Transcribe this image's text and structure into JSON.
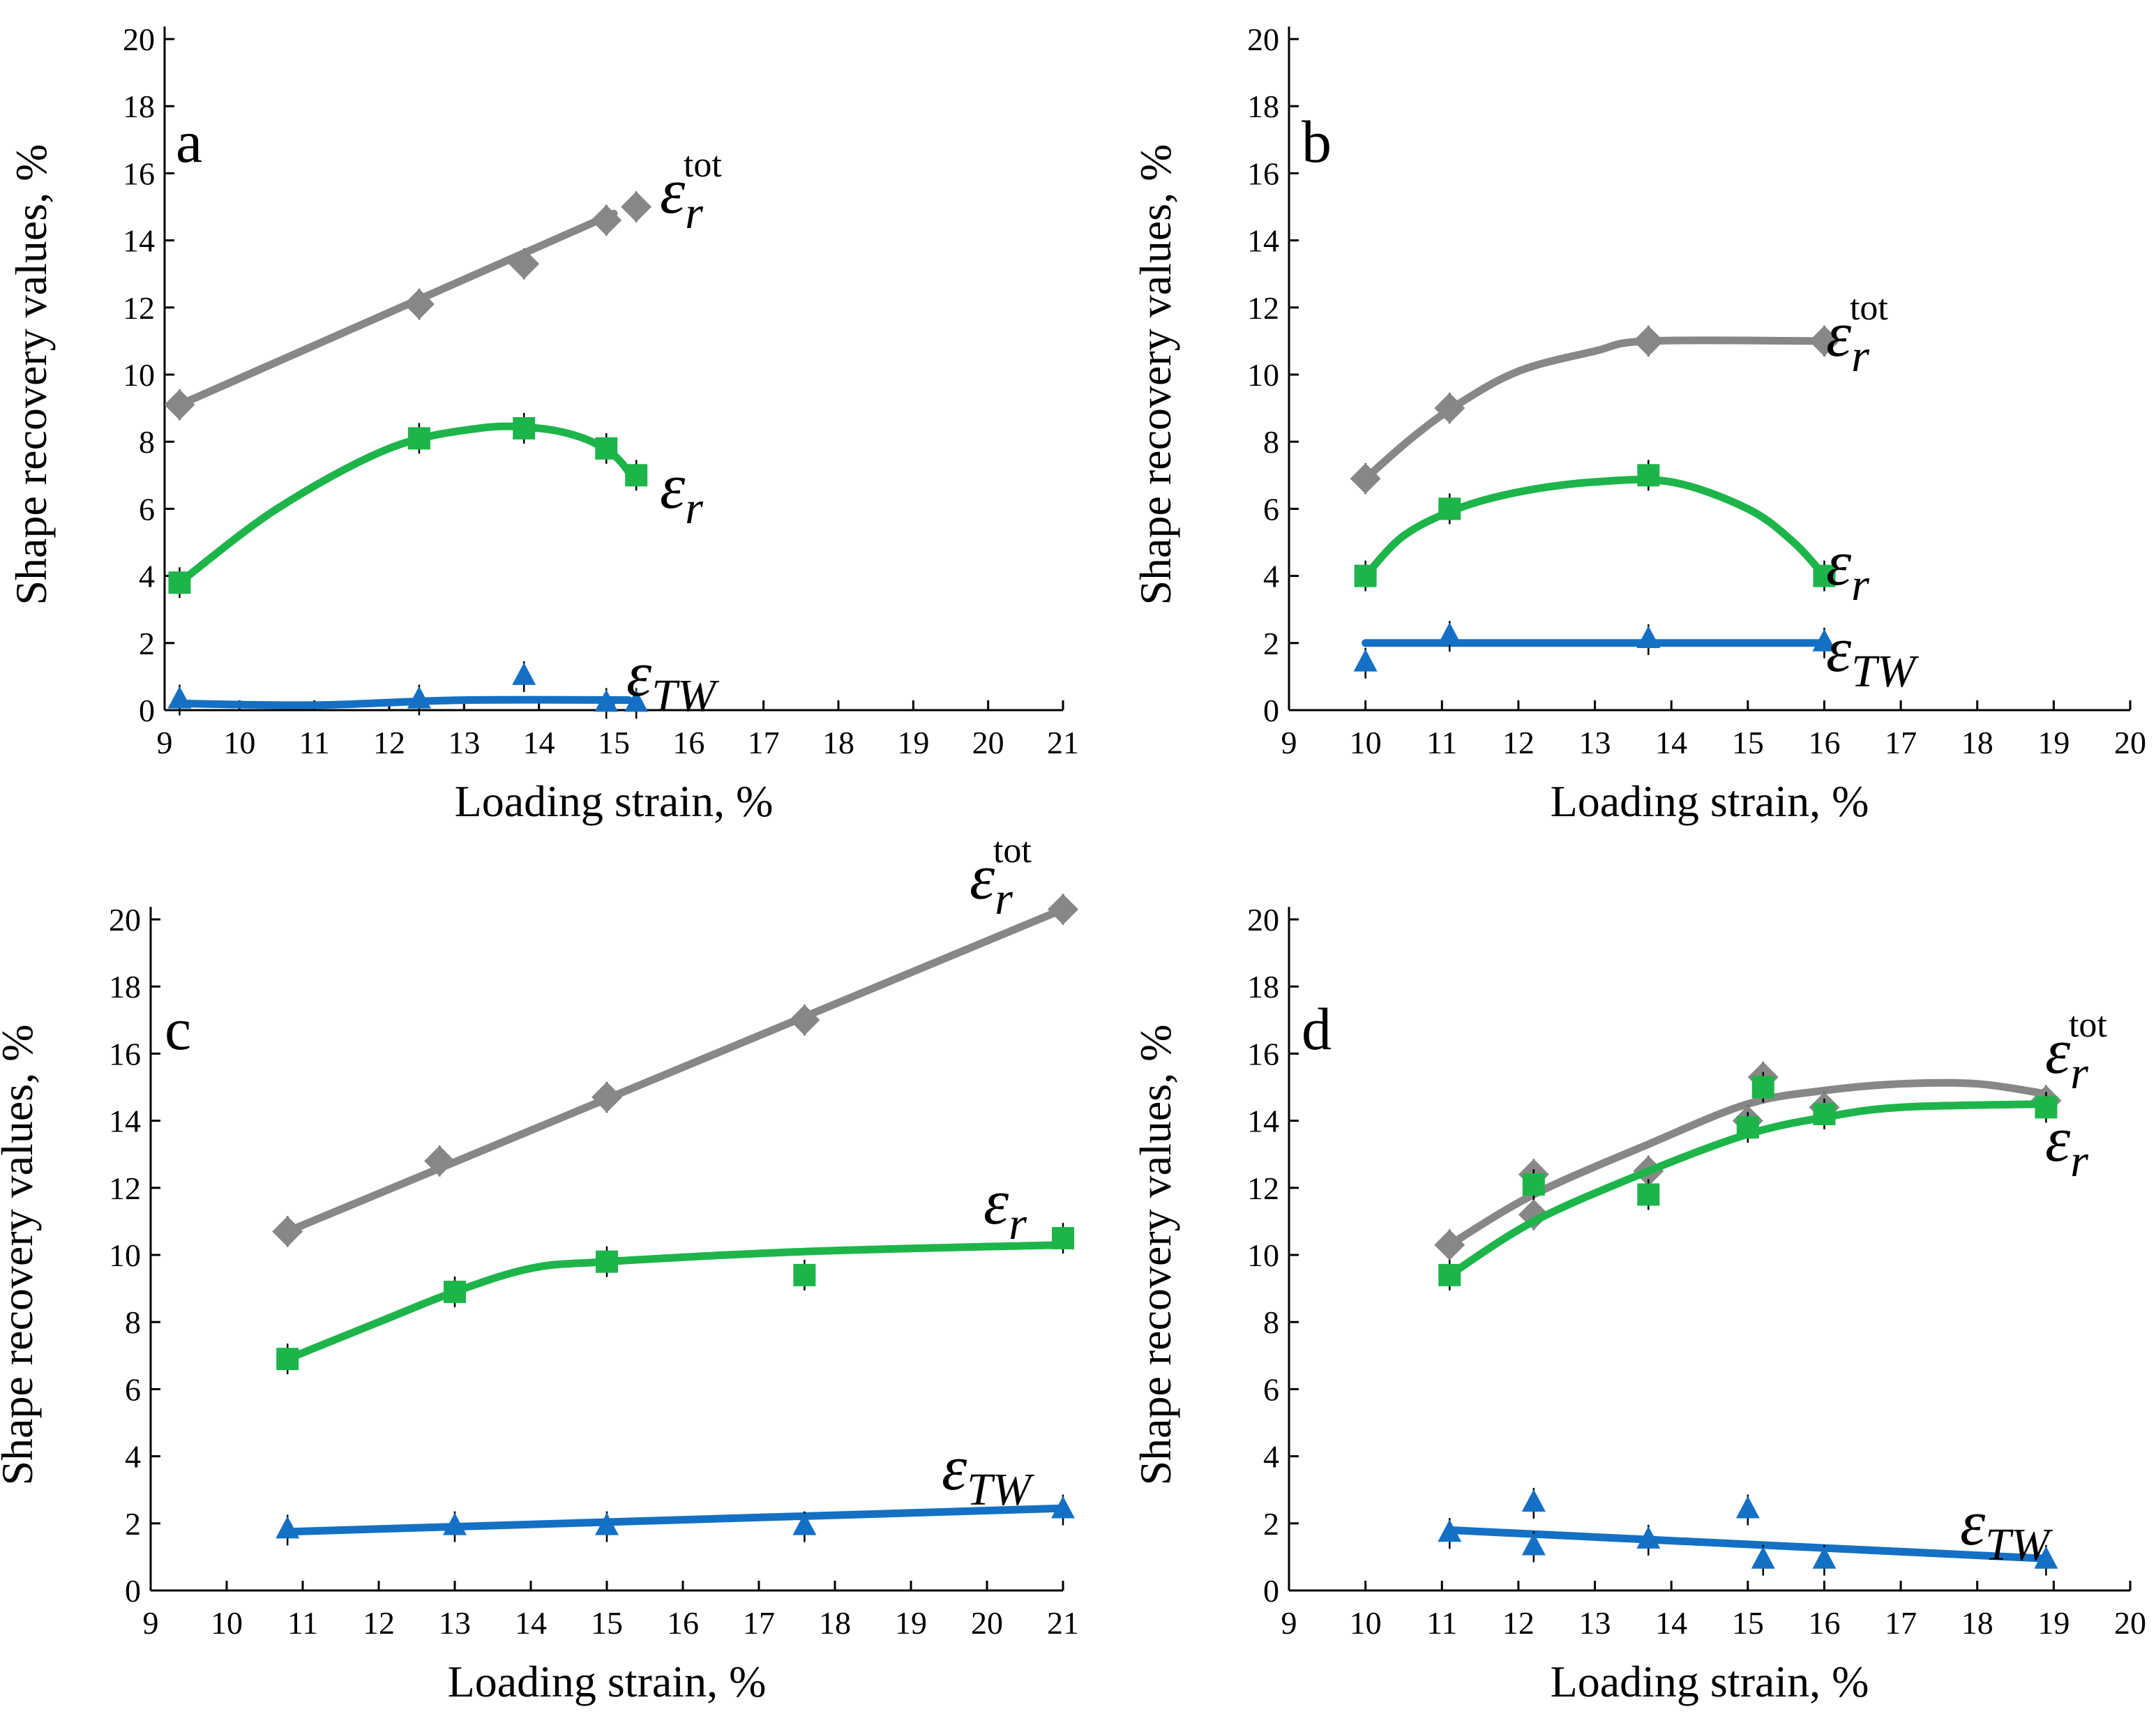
{
  "colors": {
    "total": "#878787",
    "reversible": "#1db54a",
    "two_way": "#1470c4"
  },
  "figure": {
    "shared_ylabel": "Shape recovery values, %",
    "shared_xlabel": "Loading strain, %"
  },
  "chart_data": [
    {
      "panel": "a",
      "type": "line",
      "xlabel": "Loading strain, %",
      "ylabel": "Shape recovery values, %",
      "xlim": [
        9,
        21
      ],
      "ylim": [
        0,
        20
      ],
      "x_ticks": [
        9,
        10,
        11,
        12,
        13,
        14,
        15,
        16,
        17,
        18,
        19,
        20,
        21
      ],
      "y_ticks": [
        0,
        2,
        4,
        6,
        8,
        10,
        12,
        14,
        16,
        18,
        20
      ],
      "series": [
        {
          "key": "total",
          "marker": "diamond",
          "label_text": "ε",
          "label_sub": "r",
          "label_sup": "tot",
          "points": [
            [
              9.2,
              9.1
            ],
            [
              12.4,
              12.1
            ],
            [
              13.8,
              13.3
            ],
            [
              14.9,
              14.6
            ],
            [
              15.3,
              15.0
            ]
          ],
          "fit": [
            [
              9.2,
              9.1
            ],
            [
              15.0,
              14.8
            ]
          ]
        },
        {
          "key": "reversible",
          "marker": "square",
          "label_text": "ε",
          "label_sub": "r",
          "label_sup": "",
          "points": [
            [
              9.2,
              3.8
            ],
            [
              12.4,
              8.1
            ],
            [
              13.8,
              8.4
            ],
            [
              14.9,
              7.8
            ],
            [
              15.3,
              7.0
            ]
          ],
          "fit": [
            [
              9.2,
              3.8
            ],
            [
              10.5,
              6.0
            ],
            [
              12.0,
              7.8
            ],
            [
              13.2,
              8.4
            ],
            [
              14.0,
              8.4
            ],
            [
              14.6,
              8.1
            ],
            [
              15.0,
              7.6
            ],
            [
              15.2,
              7.1
            ]
          ]
        },
        {
          "key": "two_way",
          "marker": "triangle",
          "label_text": "ε",
          "label_sub": "TW",
          "label_sup": "",
          "points": [
            [
              9.2,
              0.3
            ],
            [
              12.4,
              0.3
            ],
            [
              13.8,
              1.0
            ],
            [
              14.9,
              0.2
            ],
            [
              15.3,
              0.2
            ]
          ],
          "fit": [
            [
              9.2,
              0.2
            ],
            [
              11.0,
              0.15
            ],
            [
              13.0,
              0.3
            ],
            [
              15.2,
              0.3
            ]
          ]
        }
      ]
    },
    {
      "panel": "b",
      "type": "line",
      "xlabel": "Loading strain, %",
      "ylabel": "Shape recovery values, %",
      "xlim": [
        9,
        20
      ],
      "ylim": [
        0,
        20
      ],
      "x_ticks": [
        9,
        10,
        11,
        12,
        13,
        14,
        15,
        16,
        17,
        18,
        19,
        20
      ],
      "y_ticks": [
        0,
        2,
        4,
        6,
        8,
        10,
        12,
        14,
        16,
        18,
        20
      ],
      "series": [
        {
          "key": "total",
          "marker": "diamond",
          "label_text": "ε",
          "label_sub": "r",
          "label_sup": "tot",
          "points": [
            [
              10.0,
              6.9
            ],
            [
              11.1,
              9.0
            ],
            [
              13.7,
              11.0
            ],
            [
              16.0,
              11.0
            ]
          ],
          "fit": [
            [
              10.0,
              6.9
            ],
            [
              10.6,
              8.1
            ],
            [
              11.2,
              9.1
            ],
            [
              12.0,
              10.1
            ],
            [
              13.0,
              10.7
            ],
            [
              13.7,
              11.0
            ],
            [
              16.0,
              11.0
            ]
          ]
        },
        {
          "key": "reversible",
          "marker": "square",
          "label_text": "ε",
          "label_sub": "r",
          "label_sup": "",
          "points": [
            [
              10.0,
              4.0
            ],
            [
              11.1,
              6.0
            ],
            [
              13.7,
              7.0
            ],
            [
              16.0,
              4.0
            ]
          ],
          "fit": [
            [
              10.0,
              4.0
            ],
            [
              10.5,
              5.2
            ],
            [
              11.2,
              6.0
            ],
            [
              12.0,
              6.5
            ],
            [
              13.0,
              6.8
            ],
            [
              14.0,
              6.8
            ],
            [
              15.0,
              6.0
            ],
            [
              15.6,
              5.0
            ],
            [
              16.0,
              4.0
            ]
          ]
        },
        {
          "key": "two_way",
          "marker": "triangle",
          "label_text": "ε",
          "label_sub": "TW",
          "label_sup": "",
          "points": [
            [
              10.0,
              1.4
            ],
            [
              11.1,
              2.2
            ],
            [
              13.7,
              2.1
            ],
            [
              16.0,
              2.0
            ]
          ],
          "fit": [
            [
              10.0,
              2.0
            ],
            [
              16.0,
              2.0
            ]
          ]
        }
      ]
    },
    {
      "panel": "c",
      "type": "line",
      "xlabel": "Loading strain, %",
      "ylabel": "Shape recovery values, %",
      "xlim": [
        9,
        21
      ],
      "ylim": [
        0,
        20
      ],
      "x_ticks": [
        9,
        10,
        11,
        12,
        13,
        14,
        15,
        16,
        17,
        18,
        19,
        20,
        21
      ],
      "y_ticks": [
        0,
        2,
        4,
        6,
        8,
        10,
        12,
        14,
        16,
        18,
        20
      ],
      "series": [
        {
          "key": "total",
          "marker": "diamond",
          "label_text": "ε",
          "label_sub": "r",
          "label_sup": "tot",
          "points": [
            [
              10.8,
              10.7
            ],
            [
              12.8,
              12.8
            ],
            [
              15.0,
              14.7
            ],
            [
              17.6,
              17.0
            ],
            [
              21.0,
              20.3
            ]
          ],
          "fit": [
            [
              10.8,
              10.7
            ],
            [
              21.0,
              20.3
            ]
          ]
        },
        {
          "key": "reversible",
          "marker": "square",
          "label_text": "ε",
          "label_sub": "r",
          "label_sup": "",
          "points": [
            [
              10.8,
              6.9
            ],
            [
              13.0,
              8.9
            ],
            [
              15.0,
              9.8
            ],
            [
              17.6,
              9.4
            ],
            [
              21.0,
              10.5
            ]
          ],
          "fit": [
            [
              10.8,
              6.9
            ],
            [
              12.0,
              8.0
            ],
            [
              13.0,
              8.9
            ],
            [
              14.0,
              9.6
            ],
            [
              15.0,
              9.8
            ],
            [
              17.6,
              10.1
            ],
            [
              21.0,
              10.3
            ]
          ]
        },
        {
          "key": "two_way",
          "marker": "triangle",
          "label_text": "ε",
          "label_sub": "TW",
          "label_sup": "",
          "points": [
            [
              10.8,
              1.8
            ],
            [
              13.0,
              1.9
            ],
            [
              15.0,
              1.9
            ],
            [
              17.6,
              1.9
            ],
            [
              21.0,
              2.4
            ]
          ],
          "fit": [
            [
              10.8,
              1.75
            ],
            [
              21.0,
              2.45
            ]
          ]
        }
      ]
    },
    {
      "panel": "d",
      "type": "line",
      "xlabel": "Loading strain, %",
      "ylabel": "Shape recovery values, %",
      "xlim": [
        9,
        20
      ],
      "ylim": [
        0,
        20
      ],
      "x_ticks": [
        9,
        10,
        11,
        12,
        13,
        14,
        15,
        16,
        17,
        18,
        19,
        20
      ],
      "y_ticks": [
        0,
        2,
        4,
        6,
        8,
        10,
        12,
        14,
        16,
        18,
        20
      ],
      "series": [
        {
          "key": "total",
          "marker": "diamond",
          "label_text": "ε",
          "label_sub": "r",
          "label_sup": "tot",
          "points": [
            [
              11.1,
              10.3
            ],
            [
              12.2,
              12.4
            ],
            [
              12.2,
              11.2
            ],
            [
              13.7,
              12.5
            ],
            [
              15.0,
              14.0
            ],
            [
              15.2,
              15.3
            ],
            [
              16.0,
              14.4
            ],
            [
              18.9,
              14.6
            ]
          ],
          "fit": [
            [
              11.1,
              10.3
            ],
            [
              12.2,
              11.8
            ],
            [
              13.7,
              13.3
            ],
            [
              15.0,
              14.5
            ],
            [
              16.0,
              14.9
            ],
            [
              17.0,
              15.1
            ],
            [
              18.0,
              15.1
            ],
            [
              18.9,
              14.8
            ]
          ]
        },
        {
          "key": "reversible",
          "marker": "square",
          "label_text": "ε",
          "label_sub": "r",
          "label_sup": "",
          "points": [
            [
              11.1,
              9.4
            ],
            [
              12.2,
              12.1
            ],
            [
              13.7,
              11.8
            ],
            [
              15.0,
              13.8
            ],
            [
              15.2,
              15.0
            ],
            [
              16.0,
              14.2
            ],
            [
              18.9,
              14.4
            ]
          ],
          "fit": [
            [
              11.1,
              9.4
            ],
            [
              12.2,
              11.0
            ],
            [
              13.7,
              12.5
            ],
            [
              15.0,
              13.6
            ],
            [
              16.0,
              14.1
            ],
            [
              17.0,
              14.4
            ],
            [
              18.9,
              14.5
            ]
          ]
        },
        {
          "key": "two_way",
          "marker": "triangle",
          "label_text": "ε",
          "label_sub": "TW",
          "label_sup": "",
          "points": [
            [
              11.1,
              1.7
            ],
            [
              12.2,
              2.6
            ],
            [
              12.2,
              1.3
            ],
            [
              13.7,
              1.5
            ],
            [
              15.0,
              2.4
            ],
            [
              15.2,
              0.9
            ],
            [
              16.0,
              0.9
            ],
            [
              18.9,
              0.9
            ]
          ],
          "fit": [
            [
              11.1,
              1.8
            ],
            [
              18.9,
              0.95
            ]
          ]
        }
      ]
    }
  ]
}
